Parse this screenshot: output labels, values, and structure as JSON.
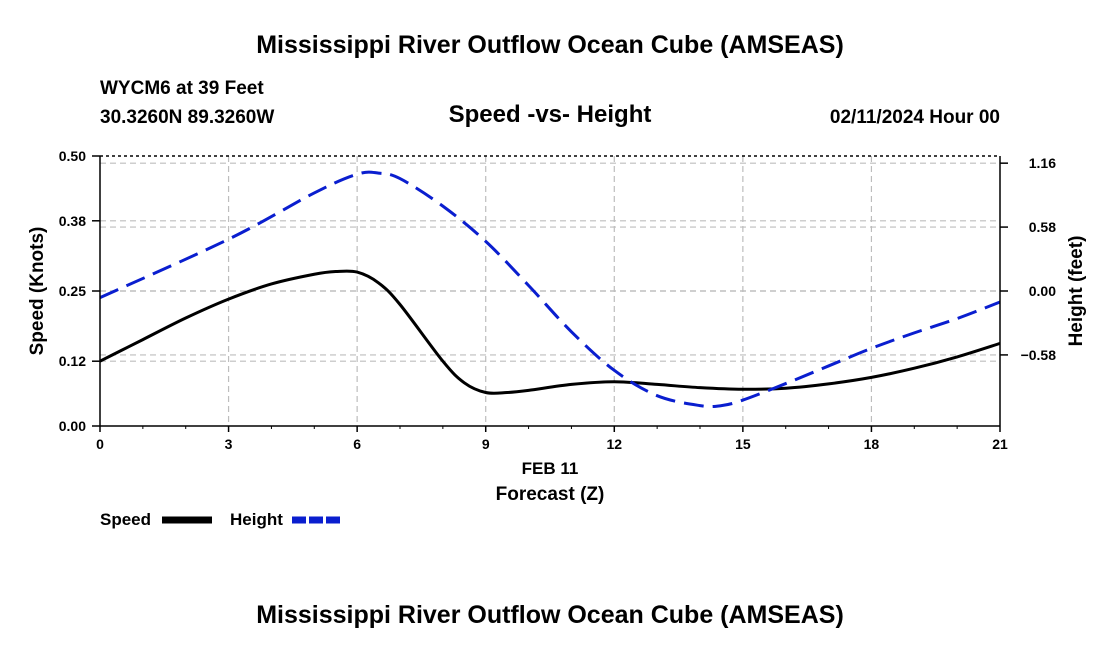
{
  "chart_data": {
    "type": "line",
    "title": "Mississippi River Outflow Ocean Cube (AMSEAS)",
    "subtitle": "Speed -vs- Height",
    "station": "WYCM6 at 39 Feet",
    "location": "30.3260N  89.3260W",
    "datetime": "02/11/2024 Hour 00",
    "xlabel": "Forecast (Z)",
    "xdate_label": "FEB 11",
    "ylabel_left": "Speed (Knots)",
    "ylabel_right": "Height (feet)",
    "xlim": [
      0,
      21
    ],
    "ylim_left": [
      0,
      0.5
    ],
    "ylim_right": [
      -1.225,
      1.225
    ],
    "x_ticks": [
      "0",
      "3",
      "6",
      "9",
      "12",
      "15",
      "18",
      "21"
    ],
    "y_left_ticks": [
      "0.00",
      "0.12",
      "0.25",
      "0.38",
      "0.50"
    ],
    "y_right_ticks": [
      "−0.58",
      "0.00",
      "0.58",
      "1.16"
    ],
    "grid": true,
    "legend_position": "bottom-left",
    "series": [
      {
        "name": "Speed",
        "axis": "left",
        "color": "#000000",
        "style": "solid",
        "x": [
          0,
          0.5,
          1,
          2,
          3,
          4,
          5,
          5.5,
          6,
          6.5,
          7,
          8,
          8.5,
          9,
          9.5,
          10,
          11,
          12,
          13,
          14,
          15,
          16,
          17,
          18,
          19,
          20,
          21
        ],
        "values": [
          0.12,
          0.14,
          0.16,
          0.2,
          0.235,
          0.263,
          0.281,
          0.286,
          0.285,
          0.265,
          0.225,
          0.12,
          0.08,
          0.062,
          0.062,
          0.066,
          0.077,
          0.082,
          0.077,
          0.071,
          0.068,
          0.07,
          0.078,
          0.09,
          0.107,
          0.128,
          0.153
        ]
      },
      {
        "name": "Height",
        "axis": "right",
        "color": "#0a1ecf",
        "style": "dashed",
        "x": [
          0,
          3,
          5,
          6,
          6.5,
          7,
          8,
          9,
          10,
          11,
          12,
          13,
          14,
          14.5,
          15,
          16,
          17,
          18,
          19,
          20,
          21
        ],
        "values": [
          -0.06,
          0.47,
          0.89,
          1.06,
          1.07,
          1.02,
          0.77,
          0.45,
          0.05,
          -0.37,
          -0.72,
          -0.95,
          -1.04,
          -1.04,
          -0.99,
          -0.84,
          -0.68,
          -0.52,
          -0.38,
          -0.25,
          -0.1
        ]
      }
    ]
  }
}
